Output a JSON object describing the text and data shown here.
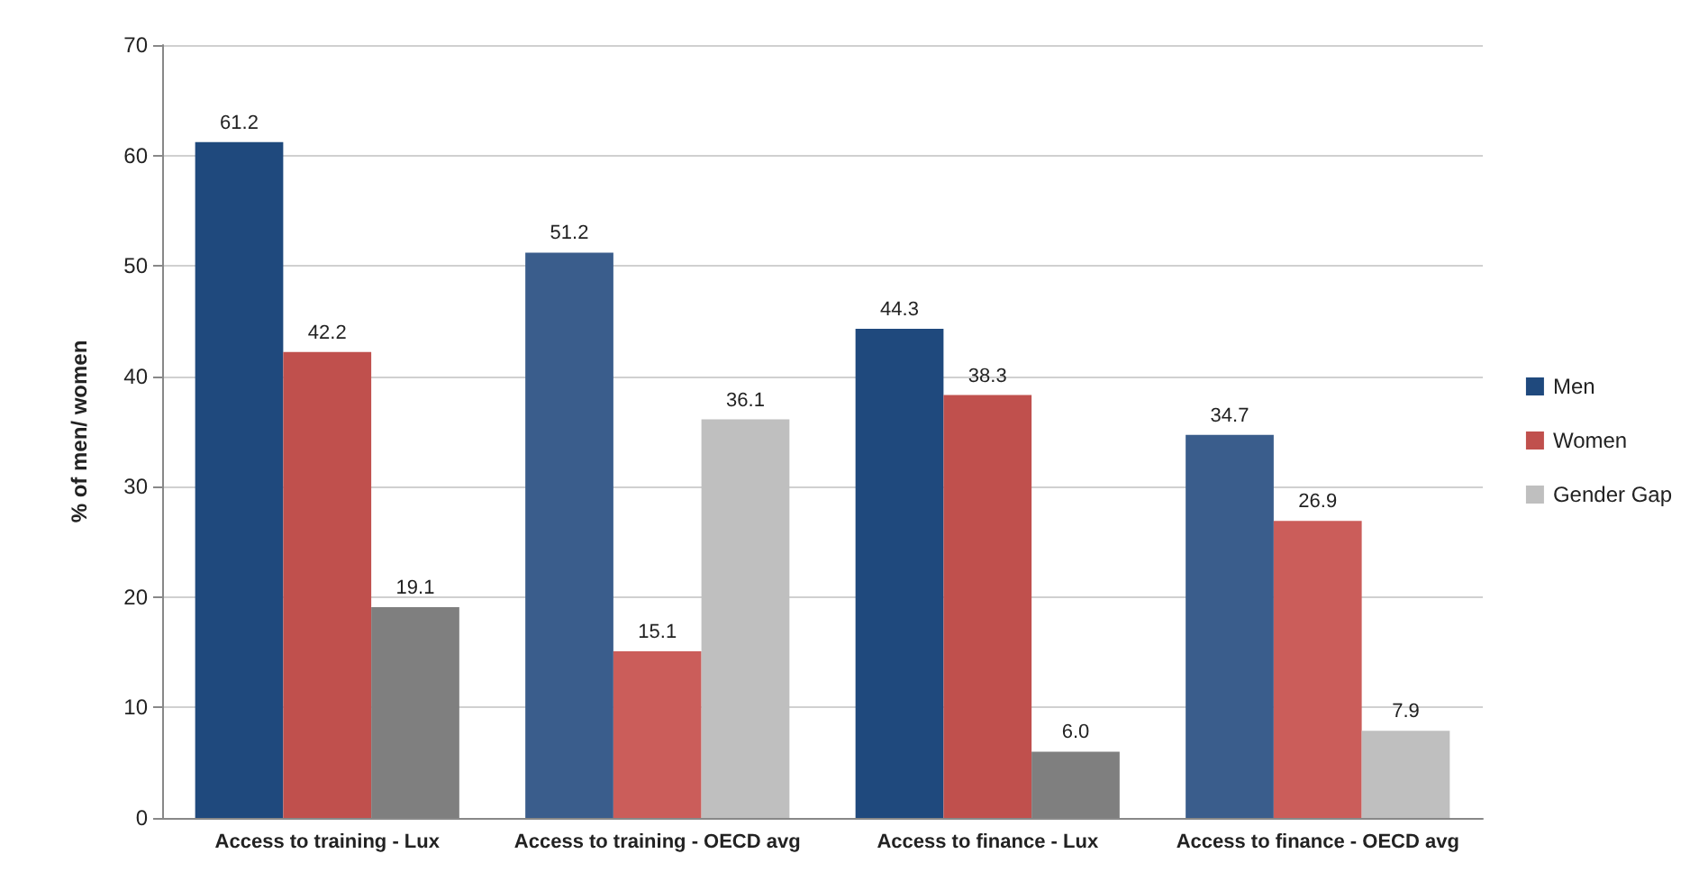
{
  "chart_data": {
    "type": "bar",
    "ylabel": "% of men/ women",
    "categories": [
      "Access to training - Lux",
      "Access to training - OECD avg",
      "Access to finance - Lux",
      "Access to finance - OECD avg"
    ],
    "series": [
      {
        "name": "Men",
        "color": "#1f497d",
        "colors": [
          "#1f497d",
          "#3a5d8c",
          "#1f497d",
          "#3a5d8c"
        ],
        "values": [
          61.2,
          51.2,
          44.3,
          34.7
        ],
        "value_labels": [
          "61.2",
          "51.2",
          "44.3",
          "34.7"
        ]
      },
      {
        "name": "Women",
        "color": "#c0504d",
        "colors": [
          "#c0504d",
          "#cb5d5a",
          "#c0504d",
          "#cb5d5a"
        ],
        "values": [
          42.2,
          15.1,
          38.3,
          26.9
        ],
        "value_labels": [
          "42.2",
          "15.1",
          "38.3",
          "26.9"
        ]
      },
      {
        "name": "Gender Gap",
        "color": "#bfbfbf",
        "colors": [
          "#7f7f7f",
          "#bfbfbf",
          "#7f7f7f",
          "#bfbfbf"
        ],
        "values": [
          19.1,
          36.1,
          6.0,
          7.9
        ],
        "value_labels": [
          "19.1",
          "36.1",
          "6.0",
          "7.9"
        ]
      }
    ],
    "ylim": [
      0,
      70
    ],
    "yticks": [
      0,
      10,
      20,
      30,
      40,
      50,
      60,
      70
    ],
    "grid": "y",
    "legend": "right"
  }
}
